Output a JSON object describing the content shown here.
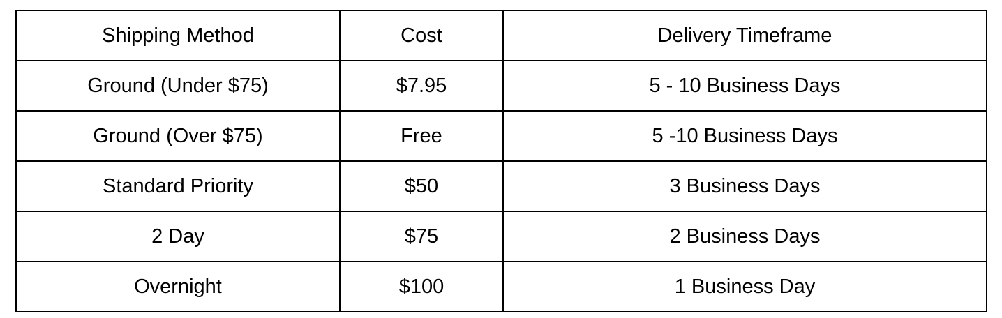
{
  "colors": {
    "background": "#ffffff",
    "border": "#000000",
    "text": "#000000"
  },
  "table": {
    "headers": [
      "Shipping Method",
      "Cost",
      "Delivery Timeframe"
    ],
    "rows": [
      [
        "Ground (Under $75)",
        "$7.95",
        "5 - 10 Business Days"
      ],
      [
        "Ground (Over $75)",
        "Free",
        "5 -10 Business Days"
      ],
      [
        "Standard Priority",
        "$50",
        "3 Business Days"
      ],
      [
        "2 Day",
        "$75",
        "2 Business Days"
      ],
      [
        "Overnight",
        "$100",
        "1 Business Day"
      ]
    ]
  }
}
